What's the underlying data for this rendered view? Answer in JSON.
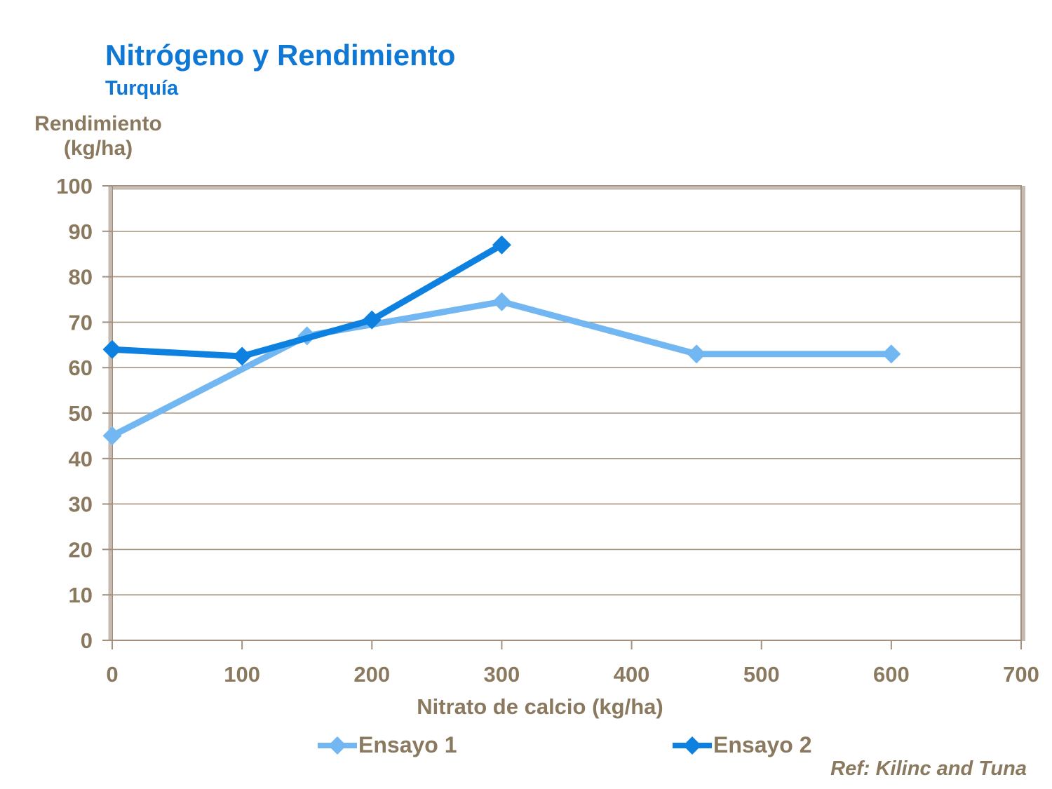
{
  "title": "Nitrógeno y Rendimiento",
  "subtitle": "Turquía",
  "y_axis_label": {
    "line1": "Rendimiento",
    "line2": "(kg/ha)"
  },
  "x_axis_label": "Nitrato de calcio (kg/ha)",
  "ref_text": "Ref: Kilinc and Tuna",
  "legend": {
    "position": "bottom",
    "items": [
      {
        "label": "Ensayo 1",
        "color": "#72b7f2"
      },
      {
        "label": "Ensayo 2",
        "color": "#0d80e0"
      }
    ]
  },
  "colors": {
    "title_blue": "#0f77d4",
    "text_brown": "#8a795e",
    "gridline": "#a89680",
    "axis_border": "#a39180",
    "border_highlight": "#c7bbb1",
    "series_ensayo_1": "#72b7f2",
    "series_ensayo_2": "#0d80e0"
  },
  "chart_data": {
    "type": "line",
    "title": "Nitrógeno y Rendimiento",
    "subtitle": "Turquía",
    "xlabel": "Nitrato de calcio (kg/ha)",
    "ylabel": "Rendimiento (kg/ha)",
    "xlim": [
      0,
      700
    ],
    "ylim": [
      0,
      100
    ],
    "x_ticks": [
      0,
      100,
      200,
      300,
      400,
      500,
      600,
      700
    ],
    "y_ticks": [
      0,
      10,
      20,
      30,
      40,
      50,
      60,
      70,
      80,
      90,
      100
    ],
    "grid": "horizontal",
    "legend_position": "bottom",
    "annotation": "Ref: Kilinc and Tuna",
    "series": [
      {
        "name": "Ensayo 1",
        "color": "#72b7f2",
        "marker": "diamond",
        "points": [
          [
            0,
            45
          ],
          [
            150,
            67
          ],
          [
            300,
            74.5
          ],
          [
            450,
            63
          ],
          [
            600,
            63
          ]
        ]
      },
      {
        "name": "Ensayo 2",
        "color": "#0d80e0",
        "marker": "diamond",
        "points": [
          [
            0,
            64
          ],
          [
            100,
            62.5
          ],
          [
            200,
            70.5
          ],
          [
            300,
            87
          ]
        ]
      }
    ]
  }
}
